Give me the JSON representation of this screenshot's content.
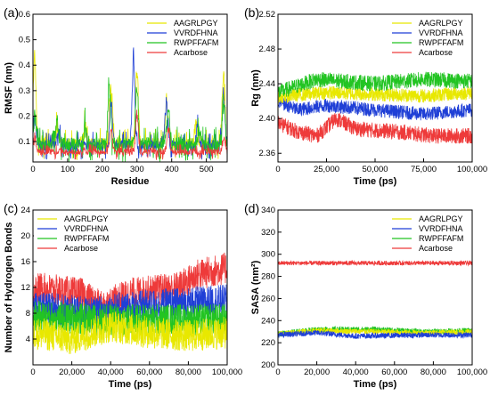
{
  "figure": {
    "background": "#ffffff"
  },
  "series_colors": {
    "AAGRLPGY": "#e8e800",
    "VVRDFHNA": "#1f3fd6",
    "RWPFFAFM": "#22c422",
    "Acarbose": "#ee3a3a"
  },
  "chart_data": [
    {
      "panel": "(a)",
      "type": "line",
      "xlabel": "Residue",
      "ylabel": "RMSF (nm)",
      "xlim": [
        0,
        560
      ],
      "ylim": [
        0.02,
        0.6
      ],
      "xticks": [
        0,
        100,
        200,
        300,
        400,
        500
      ],
      "xtick_labels": [
        "0",
        "100",
        "200",
        "300",
        "400",
        "500"
      ],
      "yticks": [
        0.1,
        0.2,
        0.3,
        0.4,
        0.5,
        0.6
      ],
      "ytick_labels": [
        "0.1",
        "0.2",
        "0.3",
        "0.4",
        "0.5",
        "0.6"
      ],
      "legend_position": "top-right",
      "series": [
        {
          "name": "AAGRLPGY",
          "baseline": 0.09,
          "noise": 0.04,
          "peaks": [
            [
              5,
              0.48
            ],
            [
              70,
              0.18
            ],
            [
              150,
              0.17
            ],
            [
              225,
              0.36
            ],
            [
              300,
              0.4
            ],
            [
              385,
              0.29
            ],
            [
              470,
              0.19
            ],
            [
              550,
              0.39
            ]
          ]
        },
        {
          "name": "VVRDFHNA",
          "baseline": 0.085,
          "noise": 0.035,
          "peaks": [
            [
              5,
              0.2
            ],
            [
              75,
              0.15
            ],
            [
              225,
              0.28
            ],
            [
              290,
              0.47
            ],
            [
              385,
              0.29
            ],
            [
              475,
              0.17
            ],
            [
              550,
              0.3
            ]
          ]
        },
        {
          "name": "RWPFFAFM",
          "baseline": 0.09,
          "noise": 0.045,
          "peaks": [
            [
              5,
              0.22
            ],
            [
              70,
              0.19
            ],
            [
              150,
              0.17
            ],
            [
              220,
              0.35
            ],
            [
              300,
              0.34
            ],
            [
              390,
              0.27
            ],
            [
              480,
              0.16
            ],
            [
              550,
              0.27
            ]
          ]
        },
        {
          "name": "Acarbose",
          "baseline": 0.06,
          "noise": 0.02,
          "peaks": [
            [
              5,
              0.11
            ],
            [
              225,
              0.15
            ],
            [
              300,
              0.22
            ],
            [
              390,
              0.17
            ],
            [
              550,
              0.12
            ]
          ]
        }
      ]
    },
    {
      "panel": "(b)",
      "type": "line",
      "xlabel": "Time (ps)",
      "ylabel": "Rg (nm)",
      "xlim": [
        0,
        100000
      ],
      "ylim": [
        2.35,
        2.52
      ],
      "xticks": [
        0,
        25000,
        50000,
        75000,
        100000
      ],
      "xtick_labels": [
        "0",
        "25,000",
        "50,000",
        "75,000",
        "100,000"
      ],
      "yticks": [
        2.36,
        2.4,
        2.44,
        2.48,
        2.52
      ],
      "ytick_labels": [
        "2.36",
        "2.40",
        "2.44",
        "2.48",
        "2.52"
      ],
      "legend_position": "top-right",
      "series": [
        {
          "name": "VVRDFHNA",
          "noise": 0.008,
          "profile": [
            [
              0,
              2.42
            ],
            [
              10000,
              2.41
            ],
            [
              25000,
              2.415
            ],
            [
              50000,
              2.41
            ],
            [
              75000,
              2.405
            ],
            [
              100000,
              2.41
            ]
          ]
        },
        {
          "name": "AAGRLPGY",
          "noise": 0.008,
          "profile": [
            [
              0,
              2.425
            ],
            [
              25000,
              2.43
            ],
            [
              50000,
              2.428
            ],
            [
              75000,
              2.426
            ],
            [
              100000,
              2.43
            ]
          ]
        },
        {
          "name": "RWPFFAFM",
          "noise": 0.009,
          "profile": [
            [
              0,
              2.43
            ],
            [
              20000,
              2.445
            ],
            [
              50000,
              2.44
            ],
            [
              75000,
              2.445
            ],
            [
              100000,
              2.443
            ]
          ]
        },
        {
          "name": "Acarbose",
          "noise": 0.009,
          "profile": [
            [
              0,
              2.395
            ],
            [
              10000,
              2.385
            ],
            [
              20000,
              2.38
            ],
            [
              30000,
              2.4
            ],
            [
              40000,
              2.388
            ],
            [
              60000,
              2.385
            ],
            [
              80000,
              2.38
            ],
            [
              100000,
              2.38
            ]
          ]
        }
      ]
    },
    {
      "panel": "(c)",
      "type": "line",
      "xlabel": "Time (ps)",
      "ylabel": "Number of Hydrogen Bonds",
      "xlim": [
        0,
        100000
      ],
      "ylim": [
        0,
        24
      ],
      "xticks": [
        0,
        20000,
        40000,
        60000,
        80000,
        100000
      ],
      "xtick_labels": [
        "0",
        "20,000",
        "40,000",
        "60,000",
        "80,000",
        "100,000"
      ],
      "yticks": [
        4,
        8,
        12,
        16,
        20,
        24
      ],
      "ytick_labels": [
        "4",
        "8",
        "12",
        "16",
        "20",
        "24"
      ],
      "legend_position": "top-left",
      "series": [
        {
          "name": "Acarbose",
          "noise": 2.5,
          "profile": [
            [
              0,
              12
            ],
            [
              25000,
              11
            ],
            [
              35000,
              9
            ],
            [
              50000,
              11
            ],
            [
              75000,
              12
            ],
            [
              85000,
              14
            ],
            [
              100000,
              15
            ]
          ]
        },
        {
          "name": "VVRDFHNA",
          "noise": 2.5,
          "profile": [
            [
              0,
              9
            ],
            [
              30000,
              8
            ],
            [
              50000,
              9
            ],
            [
              75000,
              9.5
            ],
            [
              100000,
              10
            ]
          ]
        },
        {
          "name": "RWPFFAFM",
          "noise": 2.5,
          "profile": [
            [
              0,
              7.5
            ],
            [
              30000,
              7
            ],
            [
              50000,
              7
            ],
            [
              75000,
              7
            ],
            [
              100000,
              7
            ]
          ]
        },
        {
          "name": "AAGRLPGY",
          "noise": 2.5,
          "profile": [
            [
              0,
              5
            ],
            [
              20000,
              4
            ],
            [
              40000,
              6
            ],
            [
              60000,
              5
            ],
            [
              80000,
              4.5
            ],
            [
              100000,
              5
            ]
          ]
        }
      ]
    },
    {
      "panel": "(d)",
      "type": "line",
      "xlabel": "Time (ps)",
      "ylabel": "SASA (nm²)",
      "xlim": [
        0,
        100000
      ],
      "ylim": [
        200,
        340
      ],
      "xticks": [
        0,
        20000,
        40000,
        60000,
        80000,
        100000
      ],
      "xtick_labels": [
        "0",
        "20,000",
        "40,000",
        "60,000",
        "80,000",
        "100,000"
      ],
      "yticks": [
        200,
        220,
        240,
        260,
        280,
        300,
        320,
        340
      ],
      "ytick_labels": [
        "200",
        "220",
        "240",
        "260",
        "280",
        "300",
        "320",
        "340"
      ],
      "legend_position": "top-right",
      "series": [
        {
          "name": "Acarbose",
          "noise": 2.0,
          "profile": [
            [
              0,
              292
            ],
            [
              50000,
              292
            ],
            [
              100000,
              292
            ]
          ]
        },
        {
          "name": "RWPFFAFM",
          "noise": 2.5,
          "profile": [
            [
              0,
              228
            ],
            [
              20000,
              232
            ],
            [
              50000,
              232
            ],
            [
              75000,
              230
            ],
            [
              100000,
              231
            ]
          ]
        },
        {
          "name": "AAGRLPGY",
          "noise": 2.5,
          "profile": [
            [
              0,
              228
            ],
            [
              20000,
              231
            ],
            [
              50000,
              230
            ],
            [
              75000,
              229
            ],
            [
              100000,
              230
            ]
          ]
        },
        {
          "name": "VVRDFHNA",
          "noise": 2.5,
          "profile": [
            [
              0,
              227
            ],
            [
              20000,
              229
            ],
            [
              40000,
              226
            ],
            [
              75000,
              227
            ],
            [
              100000,
              227
            ]
          ]
        }
      ]
    }
  ]
}
